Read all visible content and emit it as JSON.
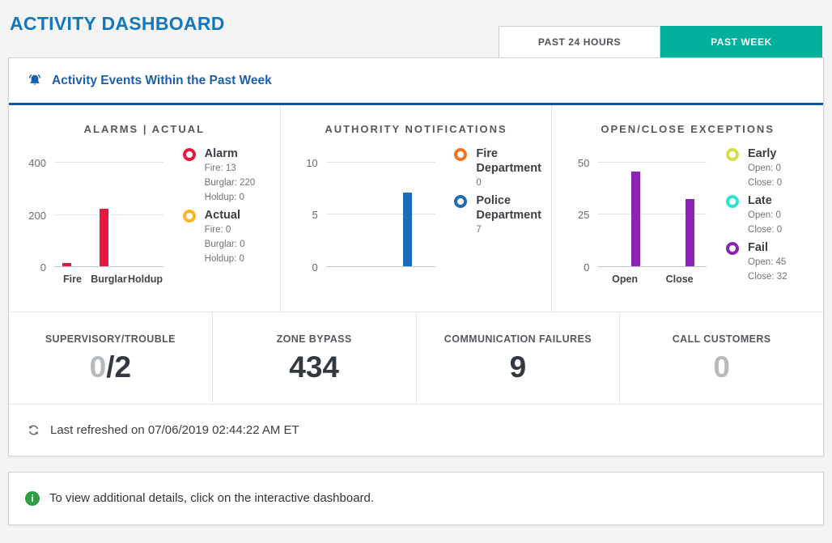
{
  "page_title": "ACTIVITY DASHBOARD",
  "tabs": [
    {
      "label": "PAST 24 HOURS",
      "active": false
    },
    {
      "label": "PAST WEEK",
      "active": true
    }
  ],
  "section_header": "Activity Events Within the Past Week",
  "chart_data": [
    {
      "type": "bar",
      "title": "ALARMS | ACTUAL",
      "categories": [
        "Fire",
        "Burglar",
        "Holdup"
      ],
      "show_xlabels": true,
      "series": [
        {
          "name": "Alarm",
          "color": "#e8173f",
          "values": [
            13,
            220,
            0
          ]
        },
        {
          "name": "Actual",
          "color": "#ffb61e",
          "values": [
            0,
            0,
            0
          ]
        }
      ],
      "ylim": [
        0,
        450
      ],
      "yticks": [
        0,
        200,
        400
      ],
      "legend": [
        {
          "name": "Alarm",
          "color": "#e8173f",
          "details": [
            "Fire: 13",
            "Burglar: 220",
            "Holdup: 0"
          ]
        },
        {
          "name": "Actual",
          "color": "#ffb61e",
          "details": [
            "Fire: 0",
            "Burglar: 0",
            "Holdup: 0"
          ]
        }
      ]
    },
    {
      "type": "bar",
      "title": "AUTHORITY NOTIFICATIONS",
      "categories": [
        "Fire Department",
        "Police Department"
      ],
      "show_xlabels": false,
      "series": [
        {
          "name": "Notifications",
          "colors": [
            "#f07522",
            "#1b6db5"
          ],
          "values": [
            0,
            7
          ]
        }
      ],
      "ylim": [
        0,
        11.2
      ],
      "yticks": [
        0,
        5,
        10
      ],
      "legend": [
        {
          "name": "Fire Department",
          "color": "#f07522",
          "details": [
            "0"
          ]
        },
        {
          "name": "Police Department",
          "color": "#1b6db5",
          "details": [
            "7"
          ]
        }
      ]
    },
    {
      "type": "bar",
      "title": "OPEN/CLOSE EXCEPTIONS",
      "categories": [
        "Open",
        "Close"
      ],
      "show_xlabels": true,
      "series": [
        {
          "name": "Early",
          "color": "#d5dd49",
          "values": [
            0,
            0
          ]
        },
        {
          "name": "Late",
          "color": "#2fe3d2",
          "values": [
            0,
            0
          ]
        },
        {
          "name": "Fail",
          "color": "#8d23b5",
          "values": [
            45,
            32
          ]
        }
      ],
      "ylim": [
        0,
        56
      ],
      "yticks": [
        0,
        25,
        50
      ],
      "legend": [
        {
          "name": "Early",
          "color": "#d5dd49",
          "details": [
            "Open: 0",
            "Close: 0"
          ]
        },
        {
          "name": "Late",
          "color": "#2fe3d2",
          "details": [
            "Open: 0",
            "Close: 0"
          ]
        },
        {
          "name": "Fail",
          "color": "#8d23b5",
          "details": [
            "Open: 45",
            "Close: 32"
          ]
        }
      ]
    }
  ],
  "stats": [
    {
      "label": "SUPERVISORY/TROUBLE",
      "muted_part": "0",
      "dark_part": "/2"
    },
    {
      "label": "ZONE BYPASS",
      "muted_part": "",
      "dark_part": "434"
    },
    {
      "label": "COMMUNICATION FAILURES",
      "muted_part": "",
      "dark_part": "9"
    },
    {
      "label": "CALL CUSTOMERS",
      "muted_part": "0",
      "dark_part": ""
    }
  ],
  "refresh_text": "Last refreshed on 07/06/2019 02:44:22 AM ET",
  "info_text": "To view additional details, click on the interactive dashboard.",
  "info_icon_glyph": "i",
  "colors": {
    "title_blue": "#1377bd",
    "accent_teal": "#00b09c",
    "header_blue": "#1d5fa8",
    "underline_blue": "#0e57a3",
    "alarm_red": "#e8173f",
    "actual_amber": "#ffb61e",
    "fire_dept_orange": "#f07522",
    "police_blue": "#1b6db5",
    "early_green": "#d5dd49",
    "late_cyan": "#2fe3d2",
    "fail_purple": "#8d23b5",
    "info_green": "#2d9e41"
  }
}
